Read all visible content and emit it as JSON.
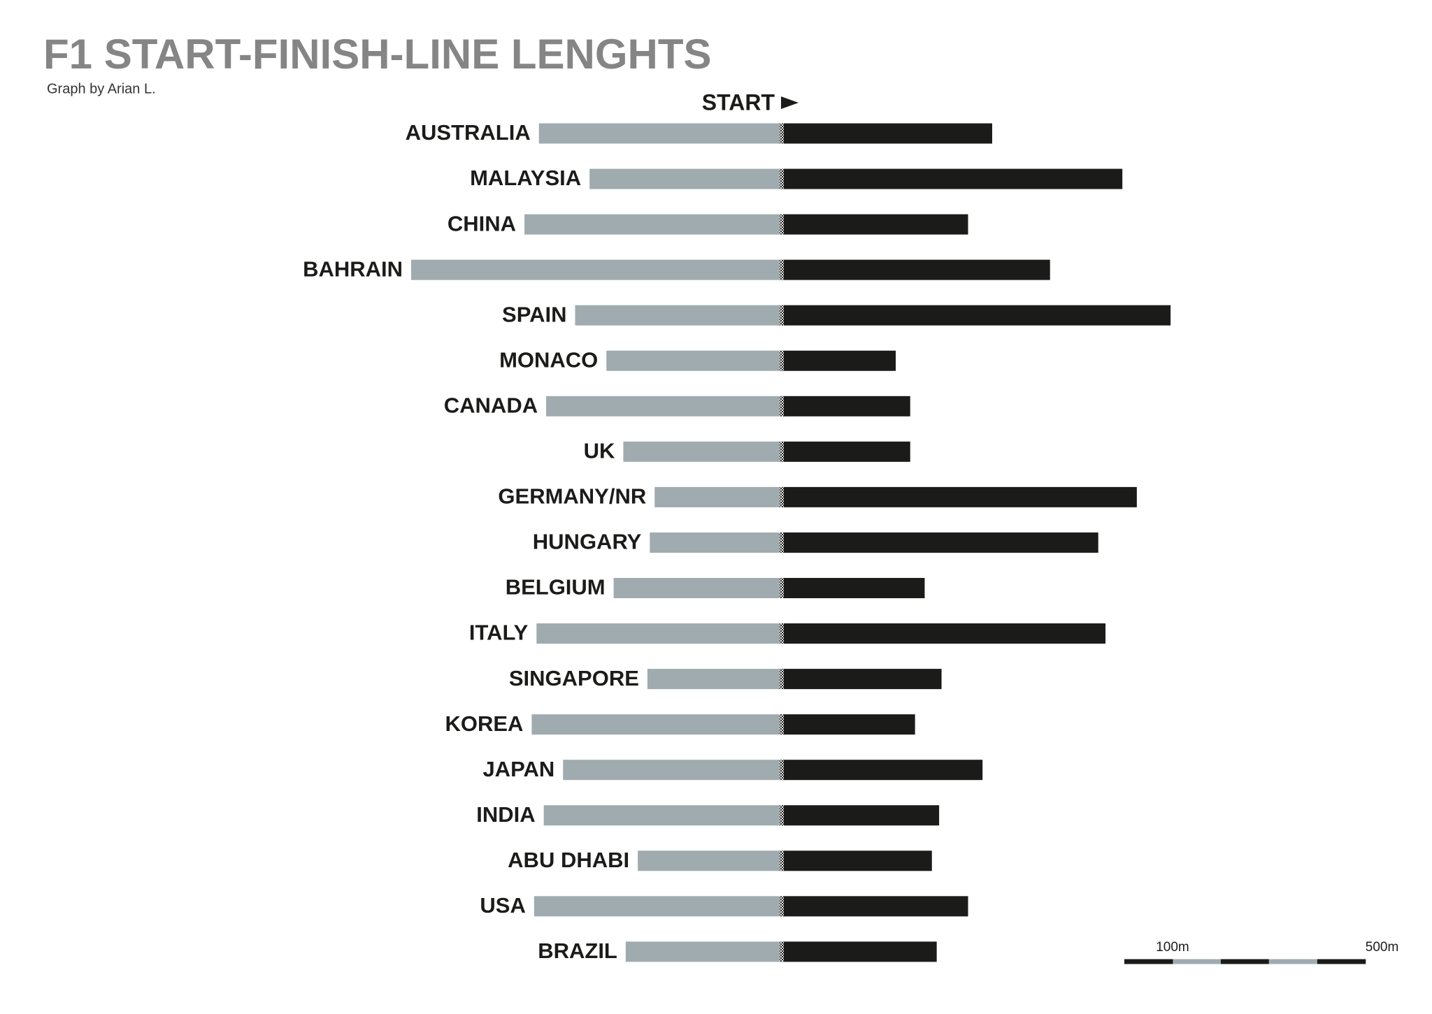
{
  "chart_data": {
    "type": "diverging-bar",
    "title": "F1 START-FINISH-LINE LENGHTS",
    "subtitle": "Graph by Arian L.",
    "annotation": "START",
    "categories": [
      "AUSTRALIA",
      "MALAYSIA",
      "CHINA",
      "BAHRAIN",
      "SPAIN",
      "MONACO",
      "CANADA",
      "UK",
      "GERMANY/NR",
      "HUNGARY",
      "BELGIUM",
      "ITALY",
      "SINGAPORE",
      "KOREA",
      "JAPAN",
      "INDIA",
      "ABU DHABI",
      "USA",
      "BRAZIL"
    ],
    "series": [
      {
        "color": "#a0abaf",
        "side": "left",
        "values": [
          505,
          400,
          535,
          770,
          430,
          365,
          490,
          330,
          265,
          275,
          350,
          510,
          280,
          520,
          455,
          495,
          300,
          515,
          325
        ]
      },
      {
        "color": "#1b1b1a",
        "side": "right",
        "values": [
          435,
          705,
          385,
          555,
          805,
          235,
          265,
          265,
          735,
          655,
          295,
          670,
          330,
          275,
          415,
          325,
          310,
          385,
          320
        ]
      }
    ],
    "xticks": [
      {
        "value": 100,
        "label": "100m"
      },
      {
        "value": 500,
        "label": "500m"
      }
    ]
  }
}
